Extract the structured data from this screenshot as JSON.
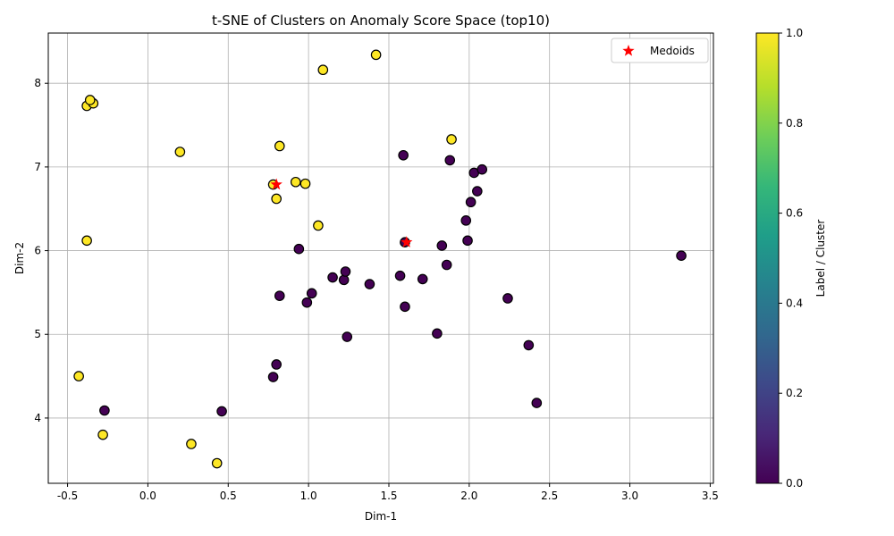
{
  "chart_data": {
    "type": "scatter",
    "title": "t-SNE of Clusters on Anomaly Score Space (top10)",
    "xlabel": "Dim-1",
    "ylabel": "Dim-2",
    "xlim": [
      -0.62,
      3.52
    ],
    "ylim": [
      3.22,
      8.6
    ],
    "xticks": [
      "-0.5",
      "0.0",
      "0.5",
      "1.0",
      "1.5",
      "2.0",
      "2.5",
      "3.0",
      "3.5"
    ],
    "yticks": [
      "4",
      "5",
      "6",
      "7",
      "8"
    ],
    "grid": true,
    "legend": {
      "placement": "top-right",
      "entries": [
        "Medoids"
      ]
    },
    "colorbar": {
      "label": "Label / Cluster",
      "range": [
        0,
        1
      ],
      "ticks": [
        "0.0",
        "0.2",
        "0.4",
        "0.6",
        "0.8",
        "1.0"
      ],
      "colormap": "viridis"
    },
    "colors": {
      "label_0": "#440154",
      "label_1": "#fde725",
      "medoid": "#ff0000",
      "edge": "#000000",
      "grid": "#b0b0b0"
    },
    "points": [
      {
        "x": -0.38,
        "y": 7.73,
        "label": 1
      },
      {
        "x": -0.34,
        "y": 7.76,
        "label": 1
      },
      {
        "x": -0.36,
        "y": 7.8,
        "label": 1
      },
      {
        "x": 0.2,
        "y": 7.18,
        "label": 1
      },
      {
        "x": -0.38,
        "y": 6.12,
        "label": 1
      },
      {
        "x": -0.43,
        "y": 4.5,
        "label": 1
      },
      {
        "x": -0.28,
        "y": 3.8,
        "label": 1
      },
      {
        "x": 0.27,
        "y": 3.69,
        "label": 1
      },
      {
        "x": 0.43,
        "y": 3.46,
        "label": 1
      },
      {
        "x": 1.09,
        "y": 8.16,
        "label": 1
      },
      {
        "x": 1.42,
        "y": 8.34,
        "label": 1
      },
      {
        "x": 0.82,
        "y": 7.25,
        "label": 1
      },
      {
        "x": 0.78,
        "y": 6.79,
        "label": 1
      },
      {
        "x": 0.92,
        "y": 6.82,
        "label": 1
      },
      {
        "x": 0.98,
        "y": 6.8,
        "label": 1
      },
      {
        "x": 0.8,
        "y": 6.62,
        "label": 1
      },
      {
        "x": 1.06,
        "y": 6.3,
        "label": 1
      },
      {
        "x": 1.89,
        "y": 7.33,
        "label": 1
      },
      {
        "x": -0.27,
        "y": 4.09,
        "label": 0
      },
      {
        "x": 0.46,
        "y": 4.08,
        "label": 0
      },
      {
        "x": 0.78,
        "y": 4.49,
        "label": 0
      },
      {
        "x": 0.8,
        "y": 4.64,
        "label": 0
      },
      {
        "x": 0.82,
        "y": 5.46,
        "label": 0
      },
      {
        "x": 0.94,
        "y": 6.02,
        "label": 0
      },
      {
        "x": 0.99,
        "y": 5.38,
        "label": 0
      },
      {
        "x": 1.02,
        "y": 5.49,
        "label": 0
      },
      {
        "x": 1.15,
        "y": 5.68,
        "label": 0
      },
      {
        "x": 1.22,
        "y": 5.65,
        "label": 0
      },
      {
        "x": 1.23,
        "y": 5.75,
        "label": 0
      },
      {
        "x": 1.24,
        "y": 4.97,
        "label": 0
      },
      {
        "x": 1.38,
        "y": 5.6,
        "label": 0
      },
      {
        "x": 1.57,
        "y": 5.7,
        "label": 0
      },
      {
        "x": 1.59,
        "y": 7.14,
        "label": 0
      },
      {
        "x": 1.6,
        "y": 5.33,
        "label": 0
      },
      {
        "x": 1.6,
        "y": 6.1,
        "label": 0
      },
      {
        "x": 1.71,
        "y": 5.66,
        "label": 0
      },
      {
        "x": 1.8,
        "y": 5.01,
        "label": 0
      },
      {
        "x": 1.83,
        "y": 6.06,
        "label": 0
      },
      {
        "x": 1.86,
        "y": 5.83,
        "label": 0
      },
      {
        "x": 1.88,
        "y": 7.08,
        "label": 0
      },
      {
        "x": 1.98,
        "y": 6.36,
        "label": 0
      },
      {
        "x": 1.99,
        "y": 6.12,
        "label": 0
      },
      {
        "x": 2.01,
        "y": 6.58,
        "label": 0
      },
      {
        "x": 2.03,
        "y": 6.93,
        "label": 0
      },
      {
        "x": 2.05,
        "y": 6.71,
        "label": 0
      },
      {
        "x": 2.08,
        "y": 6.97,
        "label": 0
      },
      {
        "x": 2.24,
        "y": 5.43,
        "label": 0
      },
      {
        "x": 2.37,
        "y": 4.87,
        "label": 0
      },
      {
        "x": 2.42,
        "y": 4.18,
        "label": 0
      },
      {
        "x": 3.32,
        "y": 5.94,
        "label": 0
      }
    ],
    "medoids": [
      {
        "x": 0.8,
        "y": 6.79
      },
      {
        "x": 1.61,
        "y": 6.1
      }
    ]
  }
}
